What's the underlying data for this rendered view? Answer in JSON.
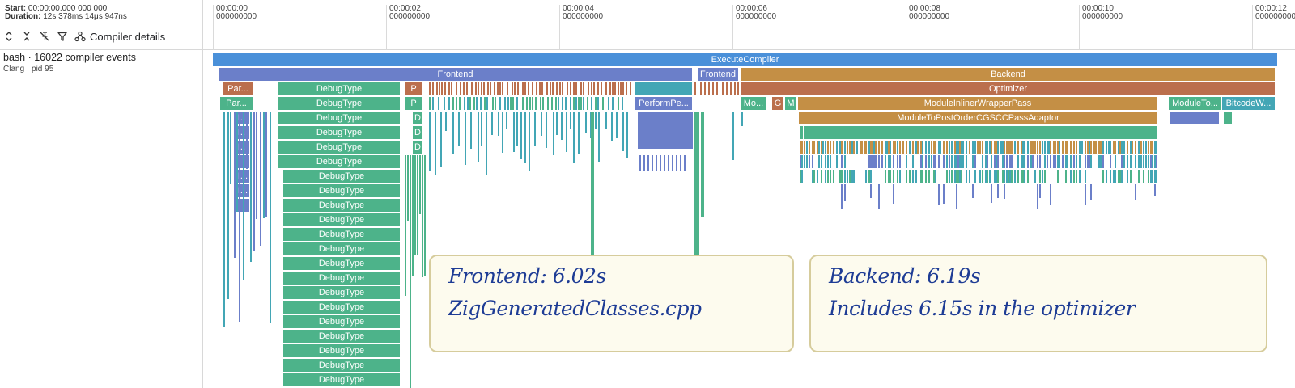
{
  "header": {
    "start_label": "Start:",
    "start_value": "00:00:00.000 000 000",
    "duration_label": "Duration:",
    "duration_value": "12s 378ms 14μs 947ns"
  },
  "toolbar": {
    "expand_icon": "expand-arrows-icon",
    "collapse_icon": "collapse-arrows-icon",
    "unpin_icon": "unpin-icon",
    "filter_icon": "filter-icon",
    "details_icon": "graph-nodes-icon",
    "details_label": "Compiler details"
  },
  "ruler": {
    "ticks": [
      {
        "time": "00:00:00",
        "ns": "000000000"
      },
      {
        "time": "00:00:02",
        "ns": "000000000"
      },
      {
        "time": "00:00:04",
        "ns": "000000000"
      },
      {
        "time": "00:00:06",
        "ns": "000000000"
      },
      {
        "time": "00:00:08",
        "ns": "000000000"
      },
      {
        "time": "00:00:10",
        "ns": "000000000"
      },
      {
        "time": "00:00:12",
        "ns": "000000000"
      }
    ]
  },
  "process": {
    "title": "bash · 16022 compiler events",
    "subtitle": "Clang · pid 95"
  },
  "slices": {
    "execute_compiler": "ExecuteCompiler",
    "frontend": "Frontend",
    "frontend2": "Frontend",
    "backend": "Backend",
    "optimizer": "Optimizer",
    "par1": "Par...",
    "par2": "Par...",
    "debug_type": "DebugType",
    "p1": "P",
    "p2": "P",
    "d": "D",
    "i_ellipsis": "I...",
    "perform_pe": "PerformPe...",
    "mo": "Mo...",
    "g": "G",
    "m": "M",
    "module_inliner": "ModuleInlinerWrapperPass",
    "module_to_post": "ModuleToPostOrderCGSCCPassAdaptor",
    "module_to": "ModuleTo...",
    "bitcode": "BitcodeW..."
  },
  "colors": {
    "execute": "#4a90d9",
    "frontend": "#6b7fc9",
    "backend": "#c48f45",
    "optimizer": "#bb6f4d",
    "debugtype": "#4db38a",
    "teal": "#43a6b5",
    "callout_bg": "#fdfbee",
    "callout_border": "#d6cc9c",
    "handwriting": "#1e3c95"
  },
  "annotations": {
    "frontend_line1": "Frontend: 6.02s",
    "frontend_line2": "ZigGeneratedClasses.cpp",
    "backend_line1": "Backend: 6.19s",
    "backend_line2": "Includes 6.15s in the optimizer"
  }
}
